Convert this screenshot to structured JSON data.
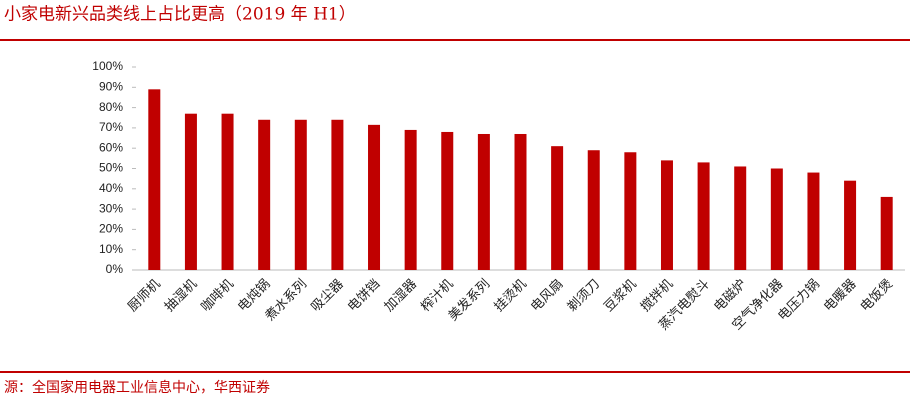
{
  "chart_data": {
    "type": "bar",
    "title": "小家电新兴品类线上占比更高（2019 年 H1）",
    "source": "源：全国家用电器工业信息中心，华西证券",
    "categories": [
      "厨师机",
      "抽湿机",
      "咖啡机",
      "电炖锅",
      "煮水系列",
      "吸尘器",
      "电饼铛",
      "加湿器",
      "榨汁机",
      "美发系列",
      "挂烫机",
      "电风扇",
      "剃须刀",
      "豆浆机",
      "搅拌机",
      "蒸汽电熨斗",
      "电磁炉",
      "空气净化器",
      "电压力锅",
      "电暖器",
      "电饭煲"
    ],
    "values": [
      89,
      77,
      77,
      74,
      74,
      74,
      71.5,
      69,
      68,
      67,
      67,
      61,
      59,
      58,
      54,
      53,
      51,
      50,
      48,
      44,
      36
    ],
    "color": "#c00000",
    "ylim": [
      0,
      100
    ],
    "yticks": [
      {
        "value": 0,
        "label": "0%"
      },
      {
        "value": 10,
        "label": "10%"
      },
      {
        "value": 20,
        "label": "20%"
      },
      {
        "value": 30,
        "label": "30%"
      },
      {
        "value": 40,
        "label": "40%"
      },
      {
        "value": 50,
        "label": "50%"
      },
      {
        "value": 60,
        "label": "60%"
      },
      {
        "value": 70,
        "label": "70%"
      },
      {
        "value": 80,
        "label": "80%"
      },
      {
        "value": 90,
        "label": "90%"
      },
      {
        "value": 100,
        "label": "100%"
      }
    ],
    "grid": false
  }
}
